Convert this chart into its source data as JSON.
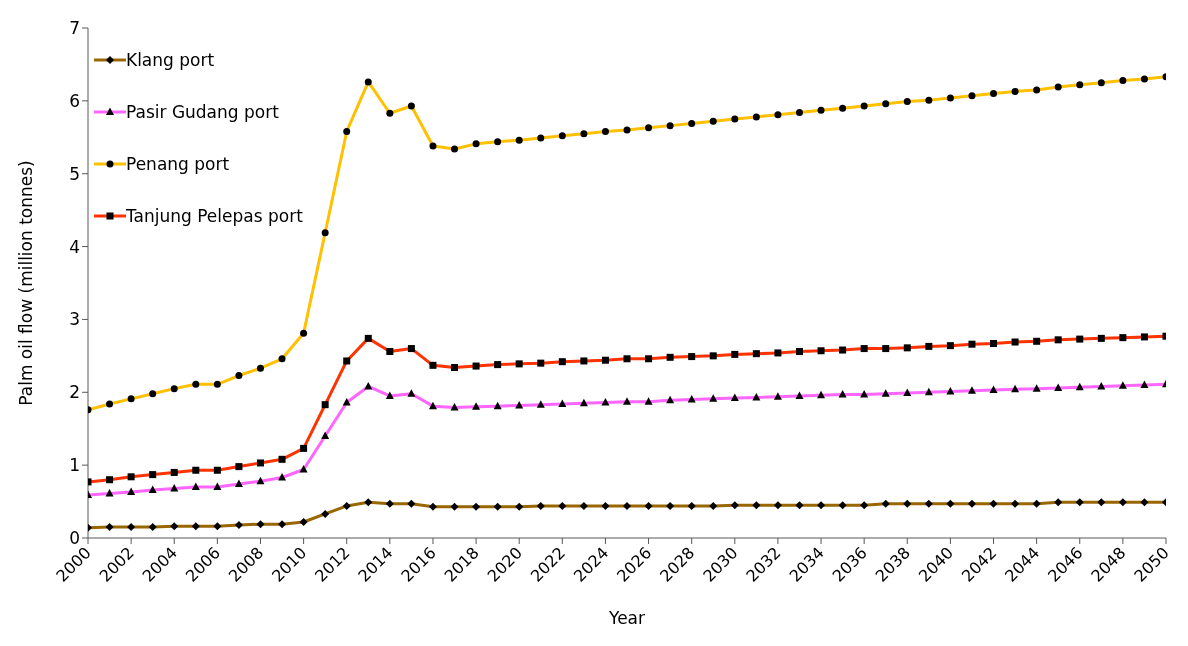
{
  "chart_data": {
    "type": "line",
    "xlabel": "Year",
    "ylabel": "Palm oil flow (million tonnes)",
    "x": [
      2000,
      2001,
      2002,
      2003,
      2004,
      2005,
      2006,
      2007,
      2008,
      2009,
      2010,
      2011,
      2012,
      2013,
      2014,
      2015,
      2016,
      2017,
      2018,
      2019,
      2020,
      2021,
      2022,
      2023,
      2024,
      2025,
      2026,
      2027,
      2028,
      2029,
      2030,
      2031,
      2032,
      2033,
      2034,
      2035,
      2036,
      2037,
      2038,
      2039,
      2040,
      2041,
      2042,
      2043,
      2044,
      2045,
      2046,
      2047,
      2048,
      2049,
      2050
    ],
    "xlim": [
      2000,
      2050
    ],
    "xticks": [
      2000,
      2002,
      2004,
      2006,
      2008,
      2010,
      2012,
      2014,
      2016,
      2018,
      2020,
      2022,
      2024,
      2026,
      2028,
      2030,
      2032,
      2034,
      2036,
      2038,
      2040,
      2042,
      2044,
      2046,
      2048,
      2050
    ],
    "ylim": [
      0,
      7
    ],
    "yticks": [
      0,
      1,
      2,
      3,
      4,
      5,
      6,
      7
    ],
    "grid": false,
    "legend": "top left",
    "line_style": "solid",
    "series": [
      {
        "name": "Klang port",
        "color": "#996600",
        "marker": "diamond",
        "values": [
          0.14,
          0.15,
          0.15,
          0.15,
          0.16,
          0.16,
          0.16,
          0.18,
          0.19,
          0.19,
          0.22,
          0.33,
          0.44,
          0.49,
          0.47,
          0.47,
          0.43,
          0.43,
          0.43,
          0.43,
          0.43,
          0.44,
          0.44,
          0.44,
          0.44,
          0.44,
          0.44,
          0.44,
          0.44,
          0.44,
          0.45,
          0.45,
          0.45,
          0.45,
          0.45,
          0.45,
          0.45,
          0.47,
          0.47,
          0.47,
          0.47,
          0.47,
          0.47,
          0.47,
          0.47,
          0.49,
          0.49,
          0.49,
          0.49,
          0.49,
          0.49
        ]
      },
      {
        "name": "Pasir Gudang port",
        "color": "#ff66ff",
        "marker": "triangle",
        "values": [
          0.59,
          0.61,
          0.63,
          0.66,
          0.68,
          0.7,
          0.7,
          0.74,
          0.78,
          0.83,
          0.94,
          1.4,
          1.86,
          2.08,
          1.95,
          1.98,
          1.81,
          1.79,
          1.8,
          1.81,
          1.82,
          1.83,
          1.84,
          1.85,
          1.86,
          1.87,
          1.87,
          1.89,
          1.9,
          1.91,
          1.92,
          1.93,
          1.94,
          1.95,
          1.96,
          1.97,
          1.97,
          1.98,
          1.99,
          2.0,
          2.01,
          2.02,
          2.03,
          2.04,
          2.05,
          2.06,
          2.07,
          2.08,
          2.09,
          2.1,
          2.11
        ]
      },
      {
        "name": "Penang port",
        "color": "#ffc000",
        "marker": "circle",
        "values": [
          1.76,
          1.84,
          1.91,
          1.98,
          2.05,
          2.11,
          2.11,
          2.23,
          2.33,
          2.46,
          2.81,
          4.19,
          5.58,
          6.26,
          5.83,
          5.93,
          5.38,
          5.34,
          5.41,
          5.44,
          5.46,
          5.49,
          5.52,
          5.55,
          5.58,
          5.6,
          5.63,
          5.66,
          5.69,
          5.72,
          5.75,
          5.78,
          5.81,
          5.84,
          5.87,
          5.9,
          5.93,
          5.96,
          5.99,
          6.01,
          6.04,
          6.07,
          6.1,
          6.13,
          6.15,
          6.19,
          6.22,
          6.25,
          6.28,
          6.3,
          6.33
        ]
      },
      {
        "name": "Tanjung Pelepas port",
        "color": "#ff3300",
        "marker": "square",
        "values": [
          0.77,
          0.8,
          0.84,
          0.87,
          0.9,
          0.93,
          0.93,
          0.98,
          1.03,
          1.08,
          1.23,
          1.83,
          2.43,
          2.74,
          2.56,
          2.6,
          2.37,
          2.34,
          2.36,
          2.38,
          2.39,
          2.4,
          2.42,
          2.43,
          2.44,
          2.46,
          2.46,
          2.48,
          2.49,
          2.5,
          2.52,
          2.53,
          2.54,
          2.56,
          2.57,
          2.58,
          2.6,
          2.6,
          2.61,
          2.63,
          2.64,
          2.66,
          2.67,
          2.69,
          2.7,
          2.72,
          2.73,
          2.74,
          2.75,
          2.76,
          2.77
        ]
      }
    ]
  }
}
